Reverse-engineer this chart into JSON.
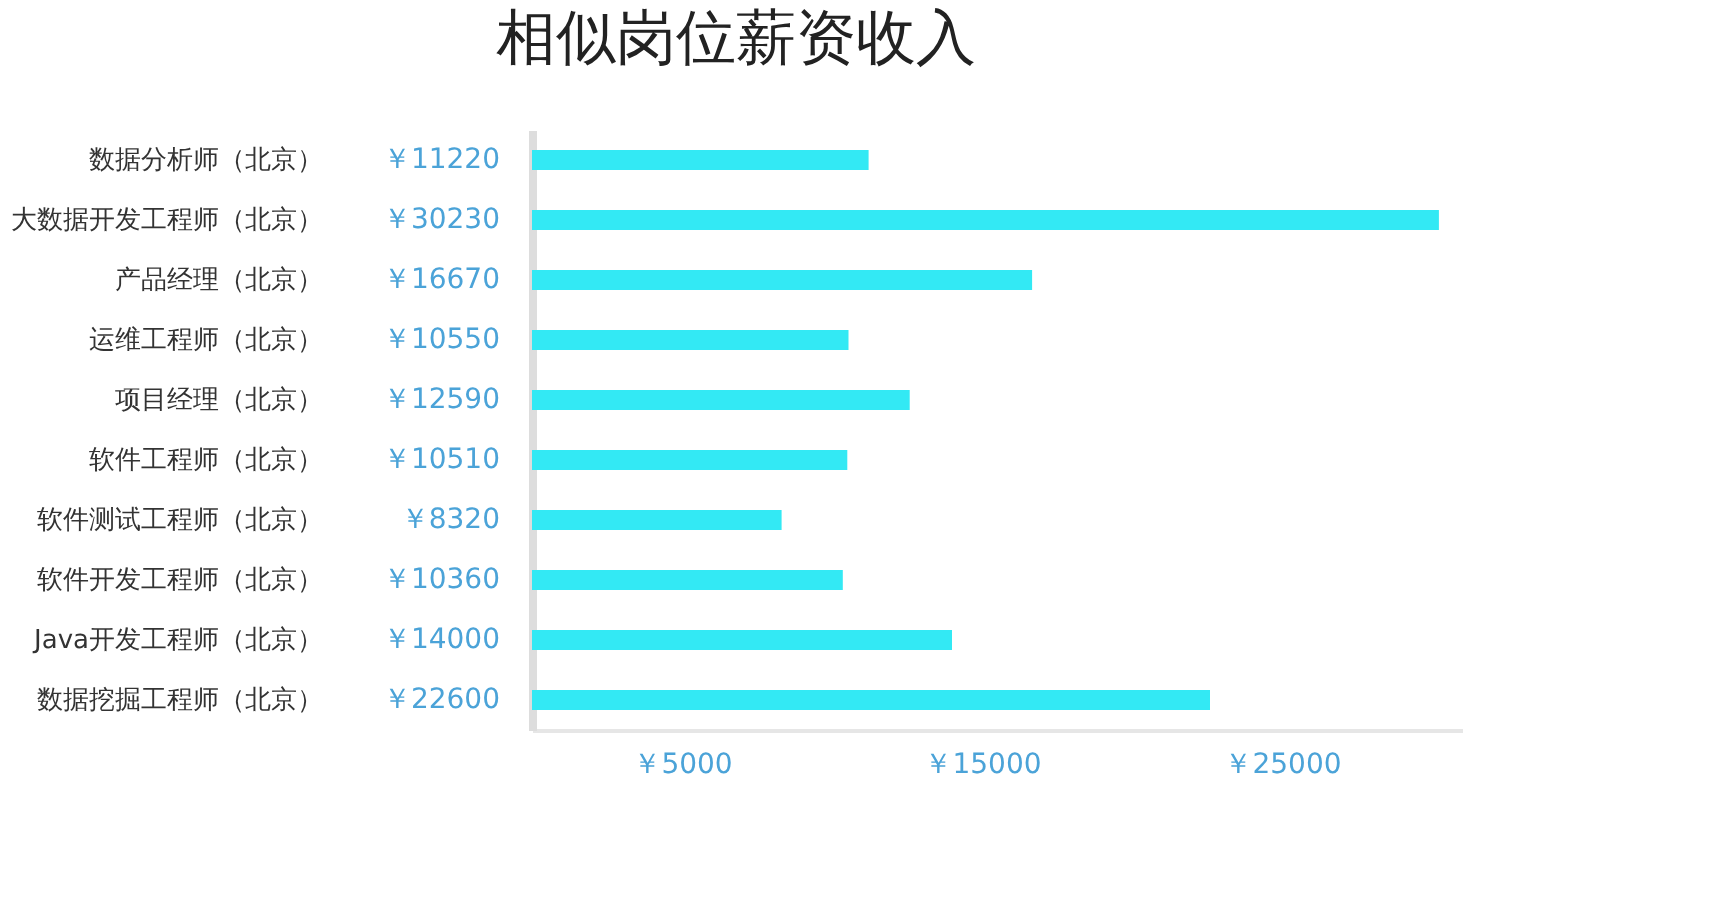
{
  "chart_data": {
    "type": "bar",
    "orientation": "horizontal",
    "title": "相似岗位薪资收入",
    "categories": [
      "数据分析师（北京）",
      "大数据开发工程师（北京）",
      "产品经理（北京）",
      "运维工程师（北京）",
      "项目经理（北京）",
      "软件工程师（北京）",
      "软件测试工程师（北京）",
      "软件开发工程师（北京）",
      "Java开发工程师（北京）",
      "数据挖掘工程师（北京）"
    ],
    "values": [
      11220,
      30230,
      16670,
      10550,
      12590,
      10510,
      8320,
      10360,
      14000,
      22600
    ],
    "value_labels": [
      "￥11220",
      "￥30230",
      "￥16670",
      "￥10550",
      "￥12590",
      "￥10510",
      "￥8320",
      "￥10360",
      "￥14000",
      "￥22600"
    ],
    "color": "#33e9f4",
    "xticks": [
      {
        "value": 5000,
        "label": "￥5000"
      },
      {
        "value": 15000,
        "label": "￥15000"
      },
      {
        "value": 25000,
        "label": "￥25000"
      }
    ],
    "xlim": [
      0,
      31000
    ],
    "grid": false
  }
}
